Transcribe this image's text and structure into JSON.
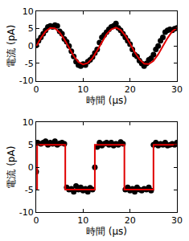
{
  "chart_data": [
    {
      "type": "scatter",
      "xlabel": "時間 (μs)",
      "ylabel": "電流 (pA)",
      "xlim": [
        0,
        30
      ],
      "xticks": [
        0,
        10,
        20,
        30
      ],
      "ylim": [
        -10,
        10
      ],
      "yticks": [
        -10,
        -5,
        0,
        5,
        10
      ],
      "grid": false,
      "series": [
        {
          "type": "scatter",
          "color": "#000000",
          "marker": "circle",
          "x": [
            0,
            0.5,
            1,
            1.5,
            2,
            2.5,
            3,
            3.5,
            4,
            4.5,
            5,
            5.5,
            6,
            6.5,
            7,
            7.5,
            8,
            8.5,
            9,
            9.5,
            10,
            10.5,
            11,
            11.5,
            12,
            12.5,
            13,
            13.5,
            14,
            14.5,
            15,
            15.5,
            16,
            16.5,
            17,
            17.5,
            18,
            18.5,
            19,
            19.5,
            20,
            20.5,
            21,
            21.5,
            22,
            22.5,
            23,
            23.5,
            24,
            24.5,
            25,
            25.5,
            26,
            26.5,
            27,
            27.5,
            28,
            28.5,
            29,
            29.5,
            30
          ],
          "values": [
            0.2,
            1.5,
            2.5,
            3.5,
            4.5,
            5.5,
            5.8,
            5.5,
            6,
            5.8,
            4.2,
            3.5,
            2,
            1.2,
            0,
            -1.5,
            -3,
            -4.5,
            -5.5,
            -5.8,
            -5.2,
            -5.5,
            -4.5,
            -4,
            -3.2,
            -2,
            -1,
            1,
            2.5,
            3.2,
            4,
            4.8,
            5.5,
            5.8,
            6.5,
            5.2,
            4.5,
            3.5,
            2.5,
            1.5,
            0.5,
            -1,
            -2.5,
            -3,
            -4.2,
            -5,
            -5.8,
            -5,
            -4,
            -3.5,
            -2.5,
            -1,
            0,
            1.5,
            2.5,
            4,
            4.5,
            4.8,
            4.5,
            5,
            5.2
          ]
        },
        {
          "type": "line",
          "color": "#e00000",
          "line_style": "solid",
          "x": [
            0,
            1,
            2,
            3,
            4,
            5,
            6,
            7,
            8,
            9,
            10,
            11,
            12,
            13,
            14,
            15,
            16,
            17,
            18,
            19,
            20,
            21,
            22,
            23,
            24,
            25,
            26,
            27,
            28,
            29,
            30
          ],
          "values": [
            -0.1,
            2.3,
            4.2,
            5.2,
            5.1,
            3.9,
            1.9,
            -0.6,
            -2.9,
            -4.6,
            -5.3,
            -4.9,
            -3.5,
            -1.3,
            1.2,
            3.4,
            4.8,
            5.3,
            4.6,
            3.0,
            0.7,
            -1.8,
            -3.8,
            -5.1,
            -5.2,
            -4.3,
            -2.4,
            -0.1,
            2.3,
            4.2,
            5.2
          ]
        }
      ]
    },
    {
      "type": "scatter",
      "xlabel": "時間 (μs)",
      "ylabel": "電流 (pA)",
      "xlim": [
        0,
        30
      ],
      "xticks": [
        0,
        10,
        20,
        30
      ],
      "ylim": [
        -10,
        10
      ],
      "yticks": [
        -10,
        -5,
        0,
        5,
        10
      ],
      "grid": false,
      "series": [
        {
          "type": "scatter",
          "color": "#000000",
          "marker": "circle",
          "x": [
            0,
            0.3,
            1,
            1.5,
            2,
            2.5,
            3,
            3.5,
            4,
            4.5,
            5,
            5.5,
            6,
            6.5,
            7,
            7.5,
            8,
            8.5,
            9,
            9.5,
            10,
            10.5,
            11,
            11.5,
            12,
            12.5,
            13,
            13.5,
            14,
            14.5,
            15,
            15.5,
            16,
            16.5,
            17,
            17.5,
            18,
            18.5,
            19,
            19.5,
            20,
            20.5,
            21,
            21.5,
            22,
            22.5,
            23,
            23.5,
            24,
            24.5,
            25,
            25.5,
            26,
            26.5,
            27,
            27.5,
            28,
            28.5,
            29,
            29.5,
            30
          ],
          "values": [
            -1,
            5.5,
            5.2,
            5.5,
            5.8,
            5,
            5.5,
            5.2,
            5.8,
            5,
            5.3,
            5.5,
            5.2,
            -4.5,
            -5,
            -4.8,
            -5.5,
            -4.2,
            -5,
            -4.5,
            -5.2,
            -4.8,
            -5.5,
            -4.6,
            -5,
            0,
            4.5,
            5.5,
            4.8,
            5.2,
            5.5,
            5,
            5.5,
            4.8,
            5.2,
            5,
            5.6,
            5.2,
            -5,
            -4.5,
            -5.2,
            -4.8,
            -5.5,
            -4.5,
            -5,
            -5.2,
            -4.8,
            -5,
            -4.5,
            -5.2,
            5,
            5.5,
            4.8,
            5.2,
            5,
            5.5,
            4.8,
            5,
            5.2,
            5,
            5.5
          ]
        },
        {
          "type": "line",
          "color": "#e00000",
          "line_style": "solid",
          "x": [
            0,
            0.2,
            0.2,
            6.2,
            6.2,
            12.5,
            12.5,
            18.8,
            18.8,
            25,
            25,
            30
          ],
          "values": [
            -5,
            -5,
            5,
            5,
            -5,
            -5,
            5,
            5,
            -5,
            -5,
            5,
            5
          ]
        }
      ]
    }
  ]
}
